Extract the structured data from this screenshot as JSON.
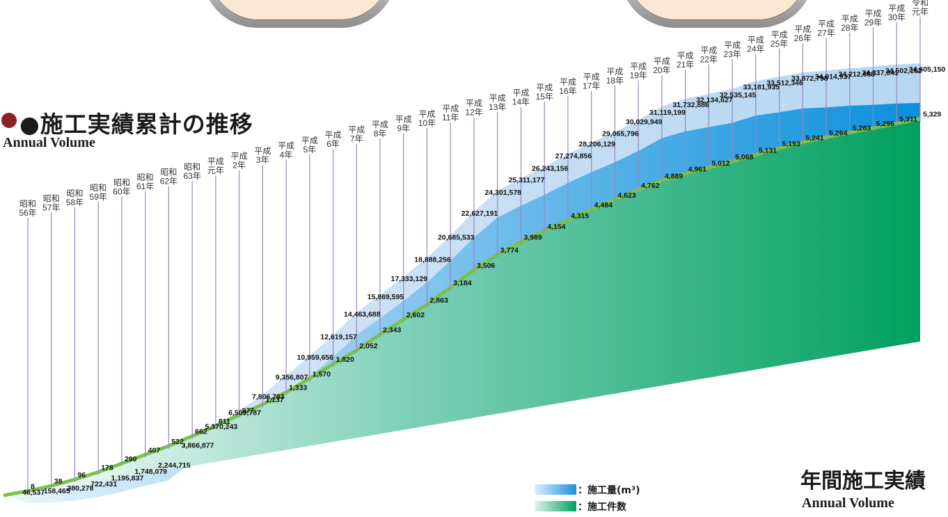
{
  "title": {
    "jp": "●施工実績累計の推移",
    "en": "Annual Volume"
  },
  "subtitle": {
    "jp": "年間施工実績",
    "en": "Annual Volume"
  },
  "legend": [
    {
      "label": "：施工量(m³)",
      "color": "#2a97dc"
    },
    {
      "label": "：施工件数",
      "color": "#0ea370"
    }
  ],
  "colors": {
    "volume": "#2a97dc",
    "count": "#0ea370",
    "line": "#9a86c4"
  },
  "chart_data": {
    "type": "area",
    "categories": [
      [
        "昭和",
        "56年"
      ],
      [
        "昭和",
        "57年"
      ],
      [
        "昭和",
        "58年"
      ],
      [
        "昭和",
        "59年"
      ],
      [
        "昭和",
        "60年"
      ],
      [
        "昭和",
        "61年"
      ],
      [
        "昭和",
        "62年"
      ],
      [
        "昭和",
        "63年"
      ],
      [
        "平成",
        "元年"
      ],
      [
        "平成",
        "2年"
      ],
      [
        "平成",
        "3年"
      ],
      [
        "平成",
        "4年"
      ],
      [
        "平成",
        "5年"
      ],
      [
        "平成",
        "6年"
      ],
      [
        "平成",
        "7年"
      ],
      [
        "平成",
        "8年"
      ],
      [
        "平成",
        "9年"
      ],
      [
        "平成",
        "10年"
      ],
      [
        "平成",
        "11年"
      ],
      [
        "平成",
        "12年"
      ],
      [
        "平成",
        "13年"
      ],
      [
        "平成",
        "14年"
      ],
      [
        "平成",
        "15年"
      ],
      [
        "平成",
        "16年"
      ],
      [
        "平成",
        "17年"
      ],
      [
        "平成",
        "18年"
      ],
      [
        "平成",
        "19年"
      ],
      [
        "平成",
        "20年"
      ],
      [
        "平成",
        "21年"
      ],
      [
        "平成",
        "22年"
      ],
      [
        "平成",
        "23年"
      ],
      [
        "平成",
        "24年"
      ],
      [
        "平成",
        "25年"
      ],
      [
        "平成",
        "26年"
      ],
      [
        "平成",
        "27年"
      ],
      [
        "平成",
        "28年"
      ],
      [
        "平成",
        "29年"
      ],
      [
        "平成",
        "30年"
      ],
      [
        "令和",
        "元年"
      ]
    ],
    "series": [
      {
        "name": "施工量(m³)",
        "values": [
          46537,
          158465,
          380278,
          722431,
          1195837,
          1748079,
          2244715,
          3866877,
          5370243,
          6509787,
          7806783,
          9356807,
          10959656,
          12619157,
          14463688,
          15869595,
          17333129,
          18888256,
          20685533,
          22627191,
          24301578,
          25311177,
          26243156,
          27274856,
          28206129,
          29065796,
          30029949,
          31119199,
          31732886,
          32134627,
          32535145,
          33181935,
          33512346,
          33872798,
          34014937,
          34212685,
          34337041,
          34502162,
          34605150
        ]
      },
      {
        "name": "施工件数",
        "values": [
          8,
          38,
          96,
          178,
          290,
          407,
          522,
          662,
          811,
          977,
          1137,
          1333,
          1570,
          1820,
          2052,
          2343,
          2602,
          2863,
          3184,
          3506,
          3774,
          3989,
          4154,
          4315,
          4484,
          4623,
          4762,
          4889,
          4961,
          5012,
          5068,
          5131,
          5193,
          5241,
          5264,
          5283,
          5296,
          5311,
          5329
        ]
      }
    ],
    "value_labels": {
      "volume": [
        "46,537",
        "158,465",
        "380,278",
        "722,431",
        "1,195,837",
        "1,748,079",
        "2,244,715",
        "3,866,877",
        "5,370,243",
        "6,509,787",
        "7,806,783",
        "9,356,807",
        "10,959,656",
        "12,619,157",
        "14,463,688",
        "15,869,595",
        "17,333,129",
        "18,888,256",
        "20,685,533",
        "22,627,191",
        "24,301,578",
        "25,311,177",
        "26,243,156",
        "27,274,856",
        "28,206,129",
        "29,065,796",
        "30,029,949",
        "31,119,199",
        "31,732,886",
        "32,134,627",
        "32,535,145",
        "33,181,935",
        "33,512,346",
        "33,872,798",
        "34,014,937",
        "34,212,685",
        "34,337,041",
        "34,502,162",
        "34,605,150"
      ],
      "count": [
        "8",
        "38",
        "96",
        "178",
        "290",
        "407",
        "522",
        "662",
        "811",
        "977",
        "1,137",
        "1,333",
        "1,570",
        "1,820",
        "2,052",
        "2,343",
        "2,602",
        "2,863",
        "3,184",
        "3,506",
        "3,774",
        "3,989",
        "4,154",
        "4,315",
        "4,484",
        "4,623",
        "4,762",
        "4,889",
        "4,961",
        "5,012",
        "5,068",
        "5,131",
        "5,193",
        "5,241",
        "5,264",
        "5,283",
        "5,296",
        "5,311",
        "5,329"
      ]
    },
    "legend_position": "bottom-center",
    "grid": false
  }
}
